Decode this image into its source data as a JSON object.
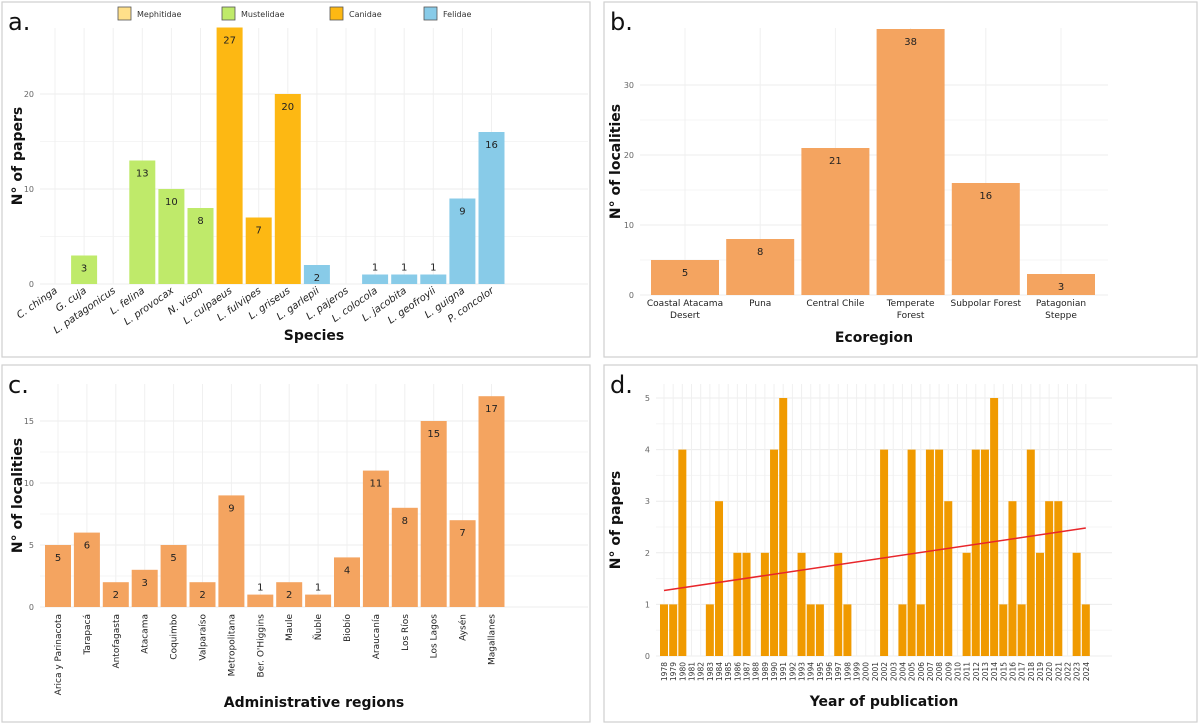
{
  "chart_data": [
    {
      "type": "bar",
      "panel_label": "a.",
      "xlabel": "Species",
      "ylabel": "N° of papers",
      "ylim": [
        0,
        28
      ],
      "yticks": [
        0,
        10,
        20
      ],
      "grid": true,
      "legend": {
        "placement": "top",
        "entries": [
          {
            "name": "Mephitidae",
            "color": "#FFE08A"
          },
          {
            "name": "Mustelidae",
            "color": "#BFEA6A"
          },
          {
            "name": "Canidae",
            "color": "#FDB813"
          },
          {
            "name": "Felidae",
            "color": "#88CBE8"
          }
        ]
      },
      "categories": [
        "C. chinga",
        "G. cuja",
        "L. patagonicus",
        "L. felina",
        "L. provocax",
        "N. vison",
        "L. culpaeus",
        "L. fulvipes",
        "L. griseus",
        "L. garlepii",
        "L. pajeros",
        "L. colocola",
        "L. jacobita",
        "L. geofroyii",
        "L. guigna",
        "P. concolor"
      ],
      "values": [
        0,
        3,
        0,
        13,
        10,
        8,
        27,
        7,
        20,
        2,
        0,
        1,
        1,
        1,
        9,
        16
      ],
      "family": [
        "Mephitidae",
        "Mustelidae",
        "Mustelidae",
        "Mustelidae",
        "Mustelidae",
        "Mustelidae",
        "Canidae",
        "Canidae",
        "Canidae",
        "Felidae",
        "Felidae",
        "Felidae",
        "Felidae",
        "Felidae",
        "Felidae",
        "Felidae"
      ]
    },
    {
      "type": "bar",
      "panel_label": "b.",
      "xlabel": "Ecoregion",
      "ylabel": "N° of localities",
      "ylim": [
        0,
        40
      ],
      "yticks": [
        0,
        10,
        20,
        30
      ],
      "grid": true,
      "color": "#F4A460",
      "categories": [
        "Coastal Atacama Desert",
        "Puna",
        "Central Chile",
        "Temperate Forest",
        "Subpolar Forest",
        "Patagonian Steppe"
      ],
      "values": [
        5,
        8,
        21,
        38,
        16,
        3
      ]
    },
    {
      "type": "bar",
      "panel_label": "c.",
      "xlabel": "Administrative  regions",
      "ylabel": "N° of localities",
      "ylim": [
        0,
        18
      ],
      "yticks": [
        0,
        5,
        10,
        15
      ],
      "grid": true,
      "color": "#F4A460",
      "categories": [
        "Arica y Parinacota",
        "Tarapacá",
        "Antofagasta",
        "Atacama",
        "Coquimbo",
        "Valparaíso",
        "Metropolitana",
        "Ber. O'Higgins",
        "Maule",
        "Ñuble",
        "Biobío",
        "Araucanía",
        "Los Ríos",
        "Los Lagos",
        "Aysén",
        "Magallanes"
      ],
      "values": [
        5,
        6,
        2,
        3,
        5,
        2,
        9,
        1,
        2,
        1,
        4,
        11,
        8,
        15,
        7,
        17
      ]
    },
    {
      "type": "bar",
      "panel_label": "d.",
      "xlabel": "Year of publication",
      "ylabel": "N° of papers",
      "ylim": [
        0,
        5.2
      ],
      "yticks": [
        0,
        1,
        2,
        3,
        4,
        5
      ],
      "grid": true,
      "color": "#F09A00",
      "trendline": {
        "color": "#E8262B",
        "start": [
          1978,
          1.27
        ],
        "end": [
          2024,
          2.48
        ]
      },
      "categories": [
        "1978",
        "1979",
        "1980",
        "1981",
        "1982",
        "1983",
        "1984",
        "1985",
        "1986",
        "1987",
        "1988",
        "1989",
        "1990",
        "1991",
        "1992",
        "1993",
        "1994",
        "1995",
        "1996",
        "1997",
        "1998",
        "1999",
        "2000",
        "2001",
        "2002",
        "2003",
        "2004",
        "2005",
        "2006",
        "2007",
        "2008",
        "2009",
        "2010",
        "2011",
        "2012",
        "2013",
        "2014",
        "2015",
        "2016",
        "2017",
        "2018",
        "2019",
        "2020",
        "2021",
        "2022",
        "2023",
        "2024"
      ],
      "values": [
        1,
        1,
        4,
        0,
        0,
        1,
        3,
        0,
        2,
        2,
        0,
        2,
        4,
        5,
        0,
        2,
        1,
        1,
        0,
        2,
        1,
        0,
        0,
        0,
        4,
        0,
        1,
        4,
        1,
        4,
        4,
        3,
        0,
        2,
        4,
        4,
        5,
        1,
        3,
        1,
        4,
        2,
        3,
        3,
        0,
        2,
        1
      ]
    }
  ]
}
